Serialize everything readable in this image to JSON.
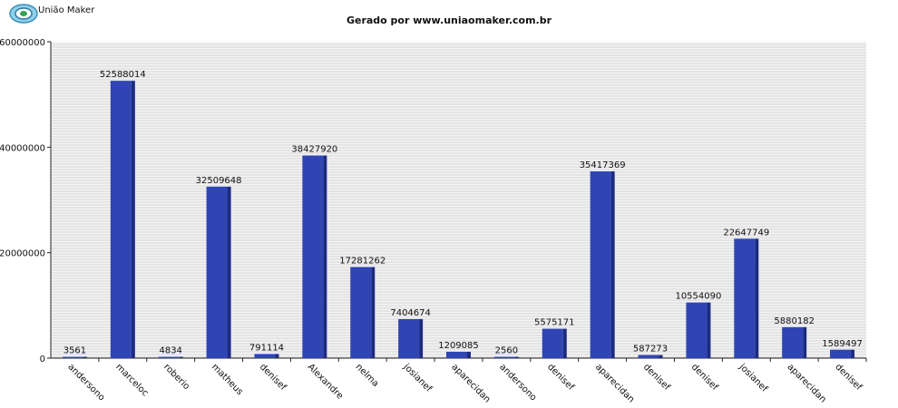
{
  "logo": {
    "text": "União Maker"
  },
  "chart_data": {
    "type": "bar",
    "title": "Gerado por www.uniaomaker.com.br",
    "xlabel": "",
    "ylabel": "",
    "ylim": [
      0,
      60000000
    ],
    "yticks": [
      0,
      20000000,
      40000000,
      60000000
    ],
    "ytick_labels": [
      "0",
      "20000000",
      "40000000",
      "60000000"
    ],
    "grid": true,
    "categories": [
      "andersono",
      "marceloc",
      "roberio",
      "matheus",
      "denisef",
      "Alexandre",
      "nelma",
      "josianef",
      "aparecidan",
      "andersono",
      "denisef",
      "aparecidan",
      "denisef",
      "denisef",
      "josianef",
      "aparecidan",
      "denisef"
    ],
    "values": [
      3561,
      52588014,
      4834,
      32509648,
      791114,
      38427920,
      17281262,
      7404674,
      1209085,
      2560,
      5575171,
      35417369,
      587273,
      10554090,
      22647749,
      5880182,
      1589497
    ],
    "colors": {
      "bar": "#2f45b5",
      "bar_side": "#1c2b80",
      "grid": "#d4d4d4"
    }
  }
}
